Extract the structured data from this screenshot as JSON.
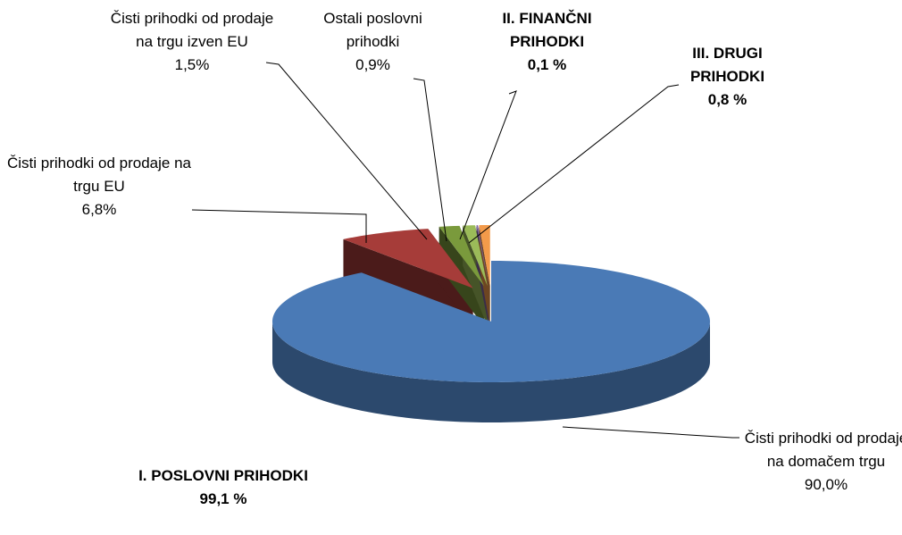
{
  "chart_data": {
    "type": "pie3d",
    "categories": [
      "Čisti prihodki od prodaje na domačem trgu",
      "Čisti prihodki od prodaje na trgu EU",
      "Čisti prihodki od prodaje na trgu izven EU",
      "Ostali poslovni prihodki",
      "II. FINANČNI PRIHODKI",
      "III. DRUGI PRIHODKI"
    ],
    "values": [
      90.0,
      6.8,
      1.5,
      0.9,
      0.1,
      0.8
    ],
    "value_labels": [
      "90,0%",
      "6,8%",
      "1,5%",
      "0,9%",
      "0,1 %",
      "0,8 %"
    ],
    "colors": [
      "#4a7ab6",
      "#a63c39",
      "#7a9a3c",
      "#9bbb59",
      "#8064a2",
      "#f39a4a"
    ],
    "annotation": {
      "text": "I. POSLOVNI PRIHODKI",
      "value_label": "99,1 %"
    }
  }
}
